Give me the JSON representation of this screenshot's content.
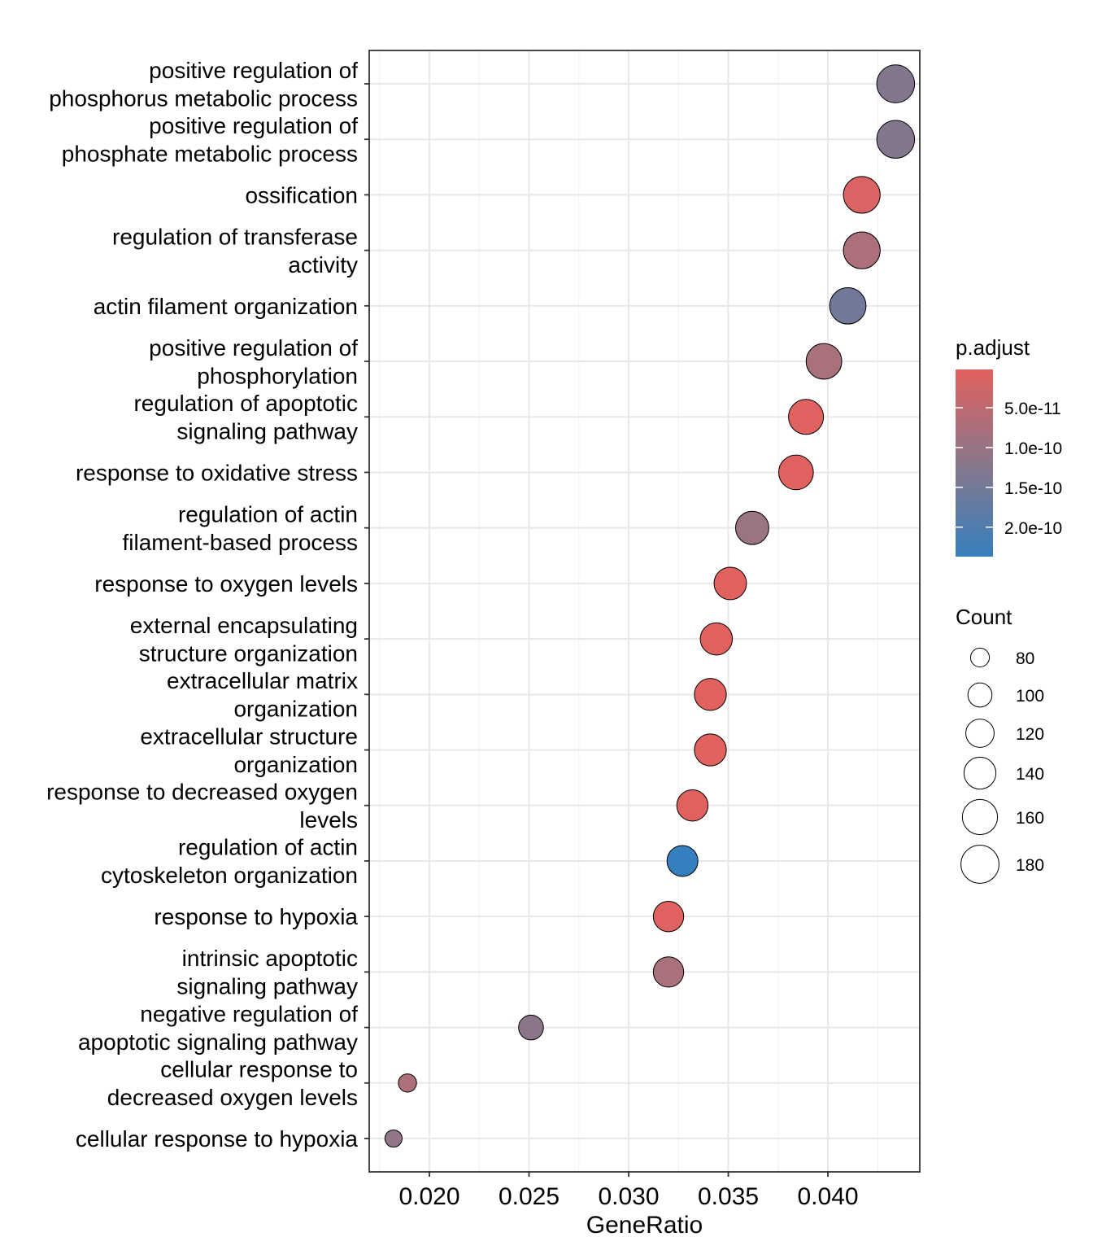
{
  "chart_data": {
    "type": "scatter",
    "subtype": "dotplot",
    "title": "",
    "xlabel": "GeneRatio",
    "ylabel": "",
    "xlim": [
      0.01698,
      0.04461
    ],
    "xticks": [
      0.02,
      0.025,
      0.03,
      0.035,
      0.04
    ],
    "xtick_labels": [
      "0.020",
      "0.025",
      "0.030",
      "0.035",
      "0.040"
    ],
    "grid": true,
    "points": [
      {
        "term": "positive regulation of phosphorus metabolic process",
        "label_lines": [
          "positive regulation of",
          "phosphorus metabolic process"
        ],
        "gene_ratio": 0.0434,
        "count": 178,
        "p_adjust": 1.3e-10
      },
      {
        "term": "positive regulation of phosphate metabolic process",
        "label_lines": [
          "positive regulation of",
          "phosphate metabolic process"
        ],
        "gene_ratio": 0.0434,
        "count": 178,
        "p_adjust": 1.3e-10
      },
      {
        "term": "ossification",
        "label_lines": [
          "ossification"
        ],
        "gene_ratio": 0.0417,
        "count": 171,
        "p_adjust": 1e-11
      },
      {
        "term": "regulation of transferase activity",
        "label_lines": [
          "regulation of transferase",
          "activity"
        ],
        "gene_ratio": 0.0417,
        "count": 171,
        "p_adjust": 6e-11
      },
      {
        "term": "actin filament organization",
        "label_lines": [
          "actin filament organization"
        ],
        "gene_ratio": 0.041,
        "count": 168,
        "p_adjust": 1.65e-10
      },
      {
        "term": "positive regulation of phosphorylation",
        "label_lines": [
          "positive regulation of",
          "phosphorylation"
        ],
        "gene_ratio": 0.0398,
        "count": 163,
        "p_adjust": 6.5e-11
      },
      {
        "term": "regulation of apoptotic signaling pathway",
        "label_lines": [
          "regulation of apoptotic",
          "signaling pathway"
        ],
        "gene_ratio": 0.0389,
        "count": 159,
        "p_adjust": 5e-12
      },
      {
        "term": "response to oxidative stress",
        "label_lines": [
          "response to oxidative stress"
        ],
        "gene_ratio": 0.0384,
        "count": 157,
        "p_adjust": 5e-12
      },
      {
        "term": "regulation of actin filament-based process",
        "label_lines": [
          "regulation of actin",
          "filament-based process"
        ],
        "gene_ratio": 0.0362,
        "count": 148,
        "p_adjust": 8.5e-11
      },
      {
        "term": "response to oxygen levels",
        "label_lines": [
          "response to oxygen levels"
        ],
        "gene_ratio": 0.0351,
        "count": 143,
        "p_adjust": 3e-12
      },
      {
        "term": "external encapsulating structure organization",
        "label_lines": [
          "external encapsulating",
          "structure organization"
        ],
        "gene_ratio": 0.0344,
        "count": 141,
        "p_adjust": 3e-12
      },
      {
        "term": "extracellular matrix organization",
        "label_lines": [
          "extracellular matrix",
          "organization"
        ],
        "gene_ratio": 0.0341,
        "count": 140,
        "p_adjust": 3e-12
      },
      {
        "term": "extracellular structure organization",
        "label_lines": [
          "extracellular structure",
          "organization"
        ],
        "gene_ratio": 0.0341,
        "count": 140,
        "p_adjust": 3e-12
      },
      {
        "term": "response to decreased oxygen levels",
        "label_lines": [
          "response to decreased oxygen",
          "levels"
        ],
        "gene_ratio": 0.0332,
        "count": 136,
        "p_adjust": 3e-12
      },
      {
        "term": "regulation of actin cytoskeleton organization",
        "label_lines": [
          "regulation of actin",
          "cytoskeleton organization"
        ],
        "gene_ratio": 0.0327,
        "count": 134,
        "p_adjust": 2.37e-10
      },
      {
        "term": "response to hypoxia",
        "label_lines": [
          "response to hypoxia"
        ],
        "gene_ratio": 0.032,
        "count": 131,
        "p_adjust": 5e-12
      },
      {
        "term": "intrinsic apoptotic signaling pathway",
        "label_lines": [
          "intrinsic apoptotic",
          "signaling pathway"
        ],
        "gene_ratio": 0.032,
        "count": 131,
        "p_adjust": 6.5e-11
      },
      {
        "term": "negative regulation of apoptotic signaling pathway",
        "label_lines": [
          "negative regulation of",
          "apoptotic signaling pathway"
        ],
        "gene_ratio": 0.0251,
        "count": 103,
        "p_adjust": 1.15e-10
      },
      {
        "term": "cellular response to decreased oxygen levels",
        "label_lines": [
          "cellular response to",
          "decreased oxygen levels"
        ],
        "gene_ratio": 0.0189,
        "count": 78,
        "p_adjust": 6e-11
      },
      {
        "term": "cellular response to hypoxia",
        "label_lines": [
          "cellular response to hypoxia"
        ],
        "gene_ratio": 0.0182,
        "count": 75,
        "p_adjust": 1.05e-10
      }
    ],
    "color_legend": {
      "title": "p.adjust",
      "range": [
        2e-12,
        2.37e-10
      ],
      "low_color": "#E2615E",
      "high_color": "#367FBE",
      "ticks": [
        5e-11,
        1e-10,
        1.5e-10,
        2e-10
      ],
      "tick_labels": [
        "5.0e-11",
        "1.0e-10",
        "1.5e-10",
        "2.0e-10"
      ]
    },
    "size_legend": {
      "title": "Count",
      "values": [
        80,
        100,
        120,
        140,
        160,
        180
      ],
      "labels": [
        "80",
        "100",
        "120",
        "140",
        "160",
        "180"
      ]
    },
    "legend_position": "right"
  }
}
